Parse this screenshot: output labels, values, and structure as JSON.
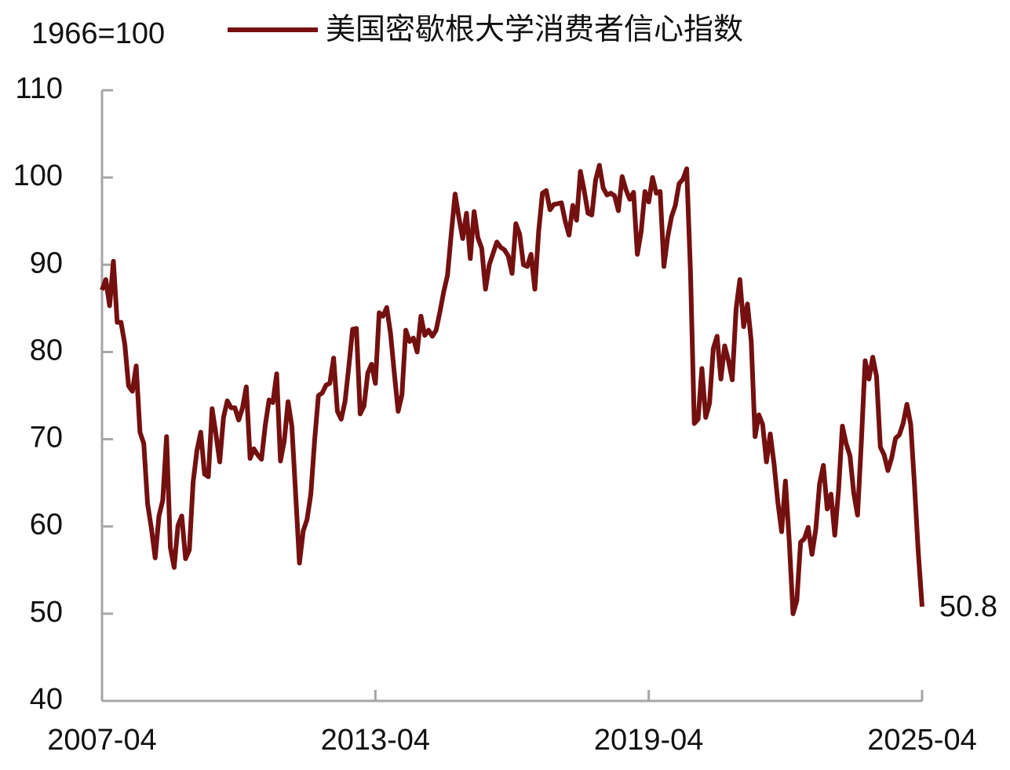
{
  "chart_data": {
    "type": "line",
    "unit_label": "1966=100",
    "x": [
      "2007-04",
      "2007-05",
      "2007-06",
      "2007-07",
      "2007-08",
      "2007-09",
      "2007-10",
      "2007-11",
      "2007-12",
      "2008-01",
      "2008-02",
      "2008-03",
      "2008-04",
      "2008-05",
      "2008-06",
      "2008-07",
      "2008-08",
      "2008-09",
      "2008-10",
      "2008-11",
      "2008-12",
      "2009-01",
      "2009-02",
      "2009-03",
      "2009-04",
      "2009-05",
      "2009-06",
      "2009-07",
      "2009-08",
      "2009-09",
      "2009-10",
      "2009-11",
      "2009-12",
      "2010-01",
      "2010-02",
      "2010-03",
      "2010-04",
      "2010-05",
      "2010-06",
      "2010-07",
      "2010-08",
      "2010-09",
      "2010-10",
      "2010-11",
      "2010-12",
      "2011-01",
      "2011-02",
      "2011-03",
      "2011-04",
      "2011-05",
      "2011-06",
      "2011-07",
      "2011-08",
      "2011-09",
      "2011-10",
      "2011-11",
      "2011-12",
      "2012-01",
      "2012-02",
      "2012-03",
      "2012-04",
      "2012-05",
      "2012-06",
      "2012-07",
      "2012-08",
      "2012-09",
      "2012-10",
      "2012-11",
      "2012-12",
      "2013-01",
      "2013-02",
      "2013-03",
      "2013-04",
      "2013-05",
      "2013-06",
      "2013-07",
      "2013-08",
      "2013-09",
      "2013-10",
      "2013-11",
      "2013-12",
      "2014-01",
      "2014-02",
      "2014-03",
      "2014-04",
      "2014-05",
      "2014-06",
      "2014-07",
      "2014-08",
      "2014-09",
      "2014-10",
      "2014-11",
      "2014-12",
      "2015-01",
      "2015-02",
      "2015-03",
      "2015-04",
      "2015-05",
      "2015-06",
      "2015-07",
      "2015-08",
      "2015-09",
      "2015-10",
      "2015-11",
      "2015-12",
      "2016-01",
      "2016-02",
      "2016-03",
      "2016-04",
      "2016-05",
      "2016-06",
      "2016-07",
      "2016-08",
      "2016-09",
      "2016-10",
      "2016-11",
      "2016-12",
      "2017-01",
      "2017-02",
      "2017-03",
      "2017-04",
      "2017-05",
      "2017-06",
      "2017-07",
      "2017-08",
      "2017-09",
      "2017-10",
      "2017-11",
      "2017-12",
      "2018-01",
      "2018-02",
      "2018-03",
      "2018-04",
      "2018-05",
      "2018-06",
      "2018-07",
      "2018-08",
      "2018-09",
      "2018-10",
      "2018-11",
      "2018-12",
      "2019-01",
      "2019-02",
      "2019-03",
      "2019-04",
      "2019-05",
      "2019-06",
      "2019-07",
      "2019-08",
      "2019-09",
      "2019-10",
      "2019-11",
      "2019-12",
      "2020-01",
      "2020-02",
      "2020-03",
      "2020-04",
      "2020-05",
      "2020-06",
      "2020-07",
      "2020-08",
      "2020-09",
      "2020-10",
      "2020-11",
      "2020-12",
      "2021-01",
      "2021-02",
      "2021-03",
      "2021-04",
      "2021-05",
      "2021-06",
      "2021-07",
      "2021-08",
      "2021-09",
      "2021-10",
      "2021-11",
      "2021-12",
      "2022-01",
      "2022-02",
      "2022-03",
      "2022-04",
      "2022-05",
      "2022-06",
      "2022-07",
      "2022-08",
      "2022-09",
      "2022-10",
      "2022-11",
      "2022-12",
      "2023-01",
      "2023-02",
      "2023-03",
      "2023-04",
      "2023-05",
      "2023-06",
      "2023-07",
      "2023-08",
      "2023-09",
      "2023-10",
      "2023-11",
      "2023-12",
      "2024-01",
      "2024-02",
      "2024-03",
      "2024-04",
      "2024-05",
      "2024-06",
      "2024-07",
      "2024-08",
      "2024-09",
      "2024-10",
      "2024-11",
      "2024-12",
      "2025-01",
      "2025-02",
      "2025-03",
      "2025-04"
    ],
    "series": [
      {
        "name": "美国密歇根大学消费者信心指数",
        "color": "#751010",
        "values": [
          87.1,
          88.3,
          85.3,
          90.4,
          83.4,
          83.4,
          80.9,
          76.1,
          75.5,
          78.4,
          70.8,
          69.5,
          62.6,
          59.8,
          56.4,
          61.2,
          63.0,
          70.3,
          57.6,
          55.3,
          60.1,
          61.2,
          56.3,
          57.3,
          65.1,
          68.7,
          70.8,
          66.0,
          65.7,
          73.5,
          70.6,
          67.4,
          72.5,
          74.4,
          73.6,
          73.6,
          72.2,
          73.6,
          76.0,
          67.8,
          68.9,
          68.2,
          67.7,
          71.6,
          74.5,
          74.2,
          77.5,
          67.5,
          69.8,
          74.3,
          71.5,
          63.7,
          55.8,
          59.5,
          60.8,
          63.7,
          69.9,
          75.0,
          75.3,
          76.2,
          76.4,
          79.3,
          73.2,
          72.3,
          74.3,
          78.3,
          82.6,
          82.7,
          72.9,
          73.8,
          77.6,
          78.6,
          76.4,
          84.5,
          84.1,
          85.1,
          82.1,
          77.5,
          73.2,
          75.1,
          82.5,
          81.2,
          81.6,
          80.0,
          84.1,
          81.9,
          82.5,
          81.8,
          82.5,
          84.6,
          86.9,
          88.8,
          93.6,
          98.1,
          95.4,
          93.0,
          95.9,
          90.7,
          96.1,
          93.1,
          91.9,
          87.2,
          90.0,
          91.3,
          92.6,
          92.0,
          91.7,
          91.0,
          89.0,
          94.7,
          93.5,
          90.0,
          89.8,
          91.2,
          87.2,
          93.8,
          98.2,
          98.5,
          96.3,
          96.9,
          97.0,
          97.1,
          95.0,
          93.4,
          96.8,
          95.1,
          100.7,
          98.5,
          95.9,
          95.7,
          99.7,
          101.4,
          98.8,
          98.0,
          98.2,
          97.9,
          96.2,
          100.1,
          98.6,
          97.5,
          98.3,
          91.2,
          93.8,
          98.4,
          97.2,
          100.0,
          98.2,
          98.4,
          89.8,
          93.2,
          95.5,
          96.8,
          99.3,
          99.8,
          101.0,
          89.1,
          71.8,
          72.3,
          78.1,
          72.5,
          74.1,
          80.4,
          81.8,
          76.9,
          80.7,
          79.0,
          76.8,
          84.9,
          88.3,
          82.9,
          85.5,
          81.2,
          70.3,
          72.8,
          71.7,
          67.4,
          70.6,
          67.2,
          62.8,
          59.4,
          65.2,
          58.4,
          50.0,
          51.5,
          58.2,
          58.6,
          59.9,
          56.8,
          59.7,
          64.9,
          67.0,
          62.0,
          63.7,
          59.0,
          64.2,
          71.5,
          69.5,
          68.1,
          63.8,
          61.3,
          69.7,
          79.0,
          76.9,
          79.4,
          77.2,
          69.1,
          68.2,
          66.4,
          67.9,
          70.1,
          70.5,
          71.8,
          74.0,
          71.7,
          64.7,
          57.0,
          50.8
        ]
      }
    ],
    "xlim": [
      "2007-04",
      "2025-04"
    ],
    "xticks": [
      "2007-04",
      "2013-04",
      "2019-04",
      "2025-04"
    ],
    "ylim": [
      40,
      110
    ],
    "yticks": [
      40,
      50,
      60,
      70,
      80,
      90,
      100,
      110
    ],
    "label_last": true
  }
}
